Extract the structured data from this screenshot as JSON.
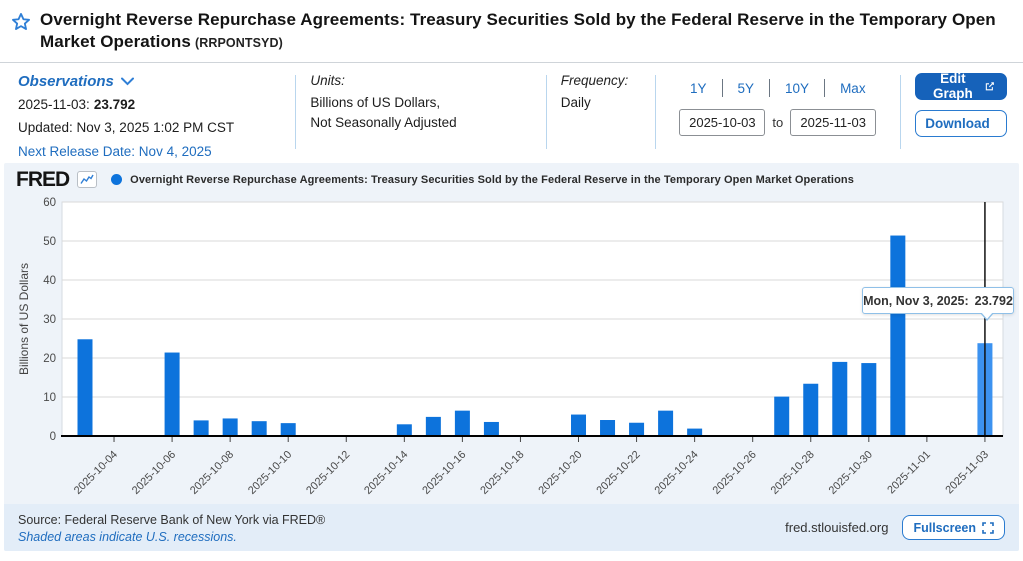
{
  "header": {
    "title": "Overnight Reverse Repurchase Agreements: Treasury Securities Sold by the Federal Reserve in the Temporary Open Market Operations",
    "series_id": "(RRPONTSYD)"
  },
  "meta": {
    "observations": {
      "label": "Observations",
      "latest_date": "2025-11-03:",
      "latest_value": "23.792",
      "updated": "Updated: Nov 3, 2025 1:02 PM CST",
      "next_release": "Next Release Date: Nov 4, 2025"
    },
    "units": {
      "label": "Units:",
      "line1": "Billions of US Dollars,",
      "line2": "Not Seasonally Adjusted"
    },
    "frequency": {
      "label": "Frequency:",
      "value": "Daily"
    },
    "ranges": [
      "1Y",
      "5Y",
      "10Y",
      "Max"
    ],
    "date_from": "2025-10-03",
    "to_label": "to",
    "date_to": "2025-11-03",
    "edit_graph_label": "Edit Graph",
    "download_label": "Download"
  },
  "chart": {
    "brand": "FRED",
    "legend_title": "Overnight Reverse Repurchase Agreements: Treasury Securities Sold by the Federal Reserve in the Temporary Open Market Operations",
    "tooltip": {
      "label": "Mon, Nov 3, 2025:",
      "value": "23.792"
    }
  },
  "chart_data": {
    "type": "bar",
    "title": "Overnight Reverse Repurchase Agreements: Treasury Securities Sold by the Federal Reserve in the Temporary Open Market Operations",
    "ylabel": "Billions of US Dollars",
    "ylim": [
      0,
      60
    ],
    "yticks": [
      0,
      10,
      20,
      30,
      40,
      50,
      60
    ],
    "grid": true,
    "x_start": "2025-10-03",
    "x_end": "2025-11-03",
    "xticks": [
      "2025-10-04",
      "2025-10-06",
      "2025-10-08",
      "2025-10-10",
      "2025-10-12",
      "2025-10-14",
      "2025-10-16",
      "2025-10-18",
      "2025-10-20",
      "2025-10-22",
      "2025-10-24",
      "2025-10-26",
      "2025-10-28",
      "2025-10-30",
      "2025-11-01",
      "2025-11-03"
    ],
    "bars": [
      {
        "date": "2025-10-03",
        "value": 24.8
      },
      {
        "date": "2025-10-06",
        "value": 21.4
      },
      {
        "date": "2025-10-07",
        "value": 4.0
      },
      {
        "date": "2025-10-08",
        "value": 4.5
      },
      {
        "date": "2025-10-09",
        "value": 3.8
      },
      {
        "date": "2025-10-10",
        "value": 3.3
      },
      {
        "date": "2025-10-14",
        "value": 3.0
      },
      {
        "date": "2025-10-15",
        "value": 4.9
      },
      {
        "date": "2025-10-16",
        "value": 6.5
      },
      {
        "date": "2025-10-17",
        "value": 3.6
      },
      {
        "date": "2025-10-20",
        "value": 5.5
      },
      {
        "date": "2025-10-21",
        "value": 4.1
      },
      {
        "date": "2025-10-22",
        "value": 3.4
      },
      {
        "date": "2025-10-23",
        "value": 6.5
      },
      {
        "date": "2025-10-24",
        "value": 1.9
      },
      {
        "date": "2025-10-27",
        "value": 10.1
      },
      {
        "date": "2025-10-28",
        "value": 13.4
      },
      {
        "date": "2025-10-29",
        "value": 19.0
      },
      {
        "date": "2025-10-30",
        "value": 18.7
      },
      {
        "date": "2025-10-31",
        "value": 51.4
      },
      {
        "date": "2025-11-03",
        "value": 23.792
      }
    ],
    "highlight_date": "2025-11-03",
    "bar_color": "#0d73dc",
    "highlight_color": "#3c92f0",
    "crosshair_color": "#111111"
  },
  "footer": {
    "source": "Source: Federal Reserve Bank of New York via FRED®",
    "recessions_note": "Shaded areas indicate U.S. recessions.",
    "site": "fred.stlouisfed.org",
    "fullscreen_label": "Fullscreen"
  }
}
